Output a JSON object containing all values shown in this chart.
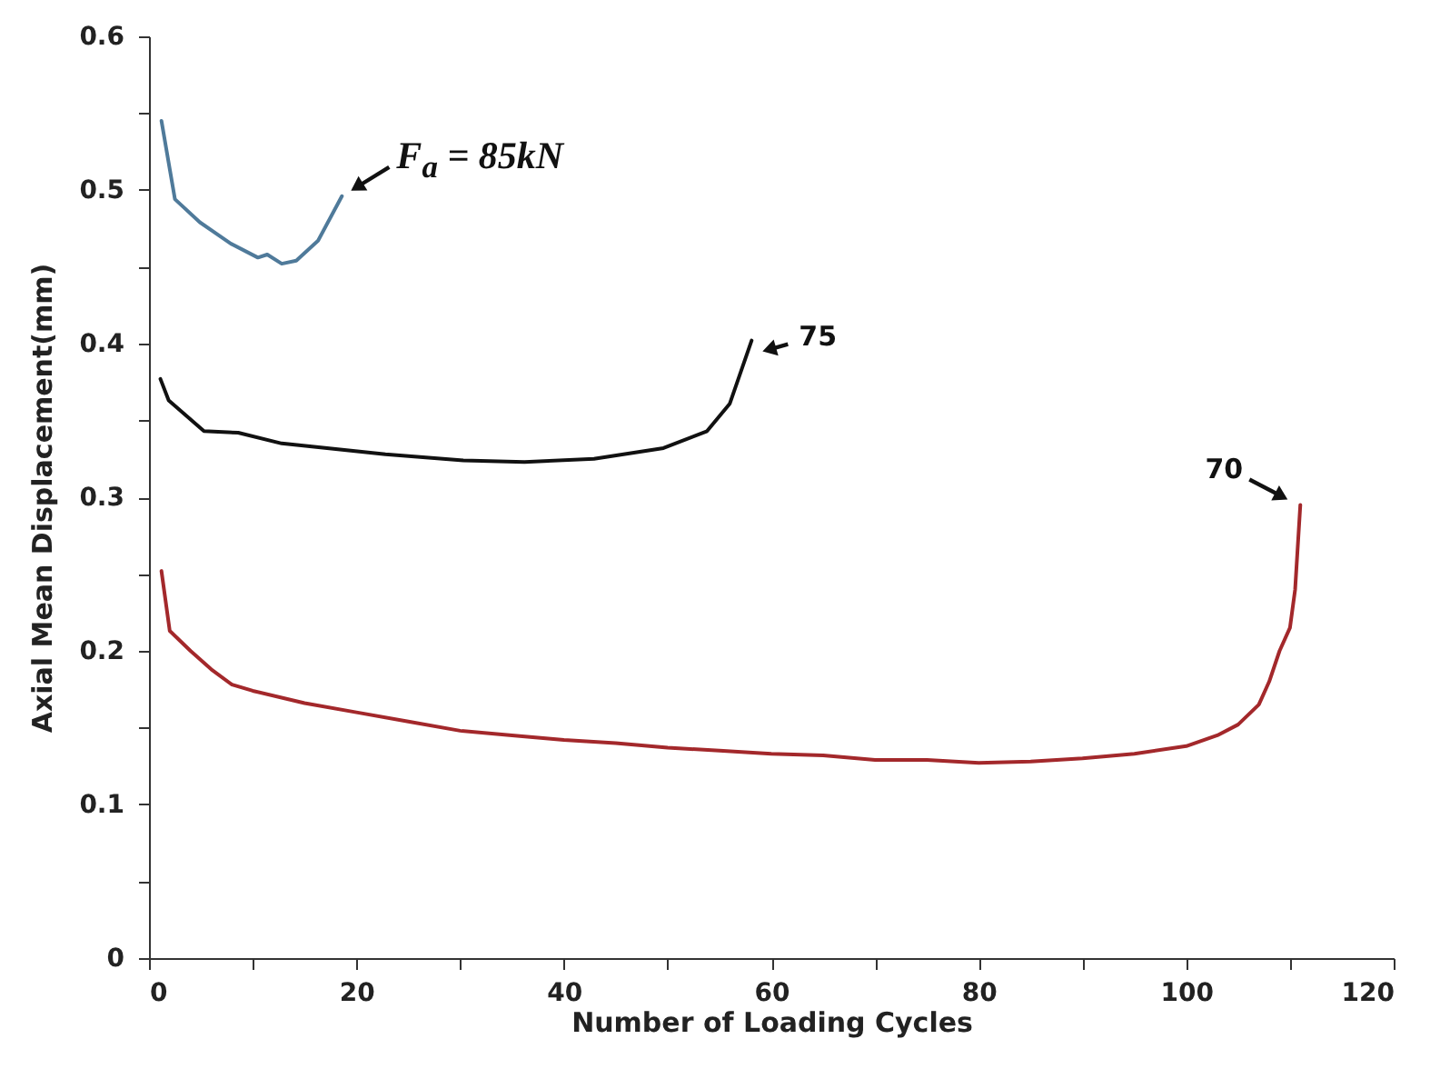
{
  "chart_data": {
    "type": "line",
    "xlabel": "Number of Loading Cycles",
    "ylabel": "Axial Mean Displacement(mm)",
    "xlim": [
      0,
      120
    ],
    "xticks": [
      0,
      {
        "value": 10,
        "label": null
      },
      20,
      {
        "value": 30,
        "label": null
      },
      40,
      {
        "value": 50,
        "label": null
      },
      60,
      {
        "value": 70,
        "label": null
      },
      80,
      {
        "value": 90,
        "label": null
      },
      100,
      {
        "value": 110,
        "label": null
      },
      120
    ],
    "ylim": [
      0,
      0.6
    ],
    "yticks": [
      0,
      {
        "value": 0.05,
        "label": null
      },
      0.1,
      {
        "value": 0.15,
        "label": null
      },
      0.2,
      {
        "value": 0.25,
        "label": null
      },
      0.3,
      {
        "value": 0.35,
        "label": null
      },
      0.4,
      {
        "value": 0.45,
        "label": null
      },
      0.5,
      {
        "value": 0.55,
        "label": null
      },
      0.6
    ],
    "grid": false,
    "annotations": [
      {
        "text": "F$_{a}$ = 85kN",
        "x": 18.6,
        "y": 0.496
      },
      {
        "text": "75",
        "x": 58.1,
        "y": 0.402
      },
      {
        "text": "70",
        "x": 111,
        "y": 0.295
      }
    ],
    "series": [
      {
        "color": "#4f7a9a",
        "x": [
          1.2,
          2.5,
          4.9,
          7.9,
          10.5,
          11.4,
          12.8,
          14.2,
          16.3,
          18.6
        ],
        "values": [
          0.545,
          0.494,
          0.479,
          0.465,
          0.456,
          0.458,
          0.452,
          0.454,
          0.467,
          0.496
        ]
      },
      {
        "color": "#111111",
        "x": [
          1.1,
          1.9,
          5.3,
          8.6,
          12.8,
          22.8,
          30.3,
          36.2,
          42.9,
          49.6,
          53.8,
          56,
          58.1
        ],
        "values": [
          0.377,
          0.363,
          0.343,
          0.342,
          0.335,
          0.328,
          0.324,
          0.323,
          0.325,
          0.332,
          0.343,
          0.361,
          0.402
        ]
      },
      {
        "color": "#a3282b",
        "x": [
          1.2,
          2,
          4,
          6,
          8,
          10,
          15,
          20,
          25,
          30,
          35,
          40,
          45,
          50,
          55,
          60,
          65,
          70,
          75,
          80,
          85,
          90,
          95,
          100,
          103,
          105,
          107,
          108,
          109,
          110,
          110.5,
          111
        ],
        "values": [
          0.252,
          0.213,
          0.2,
          0.188,
          0.178,
          0.174,
          0.166,
          0.16,
          0.154,
          0.148,
          0.145,
          0.142,
          0.14,
          0.137,
          0.135,
          0.133,
          0.132,
          0.129,
          0.129,
          0.127,
          0.128,
          0.13,
          0.133,
          0.138,
          0.145,
          0.152,
          0.165,
          0.18,
          0.2,
          0.215,
          0.24,
          0.295
        ]
      }
    ]
  }
}
